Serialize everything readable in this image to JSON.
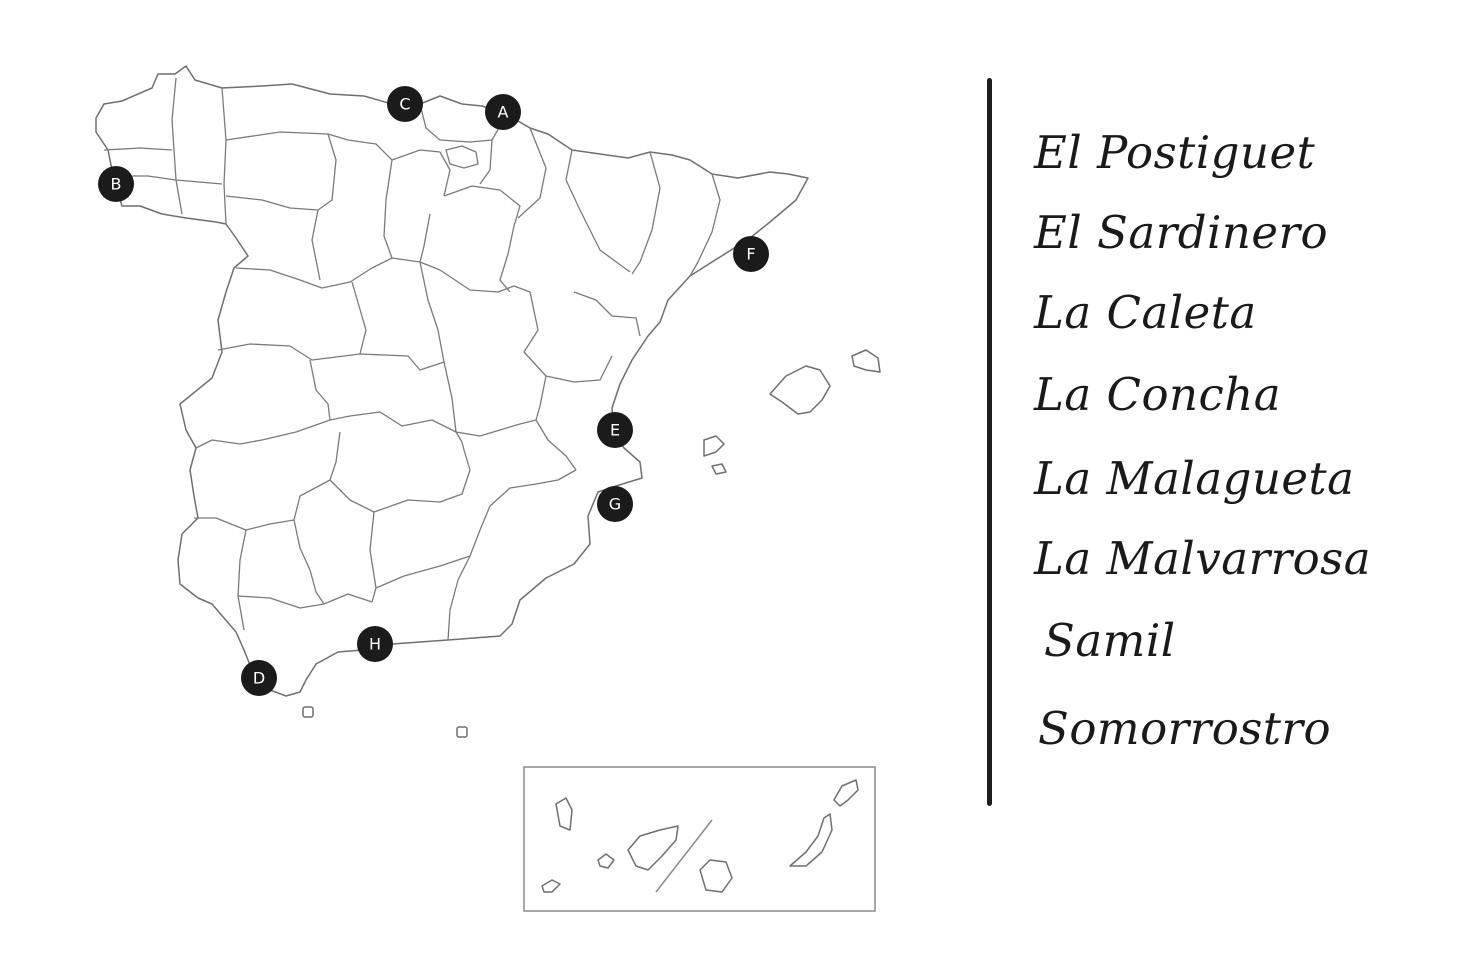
{
  "map": {
    "markers": [
      {
        "label": "A"
      },
      {
        "label": "B"
      },
      {
        "label": "C"
      },
      {
        "label": "D"
      },
      {
        "label": "E"
      },
      {
        "label": "F"
      },
      {
        "label": "G"
      },
      {
        "label": "H"
      }
    ]
  },
  "beach_list": [
    "El Postiguet",
    "El Sardinero",
    "La Caleta",
    "La Concha",
    "La Malagueta",
    "La Malvarrosa",
    "Samil",
    "Somorrostro"
  ],
  "colors": {
    "marker_fill": "#1b1b1b",
    "border_stroke": "#7a7a7a",
    "text": "#1a1a1a"
  }
}
